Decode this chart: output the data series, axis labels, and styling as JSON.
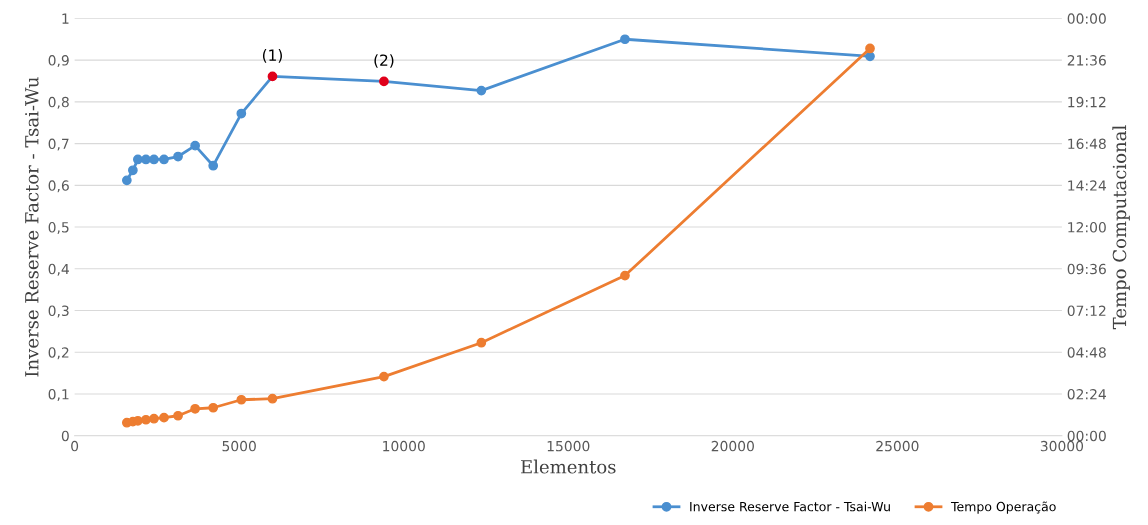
{
  "chart_data": {
    "type": "line",
    "xlabel": "Elementos",
    "ylabel": "Inverse Reserve Factor - Tsai-Wu",
    "y2label": "Tempo Computacional",
    "x": [
      1587,
      1770,
      1922,
      2167,
      2411,
      2716,
      3143,
      3662,
      4211,
      5066,
      6012,
      9399,
      12359,
      16723,
      24169
    ],
    "series": [
      {
        "name": "Inverse Reserve Factor - Tsai-Wu",
        "color": "#4a8fd0",
        "colors": [
          "#4a8fd0",
          "#4a8fd0",
          "#4a8fd0",
          "#4a8fd0",
          "#4a8fd0",
          "#4a8fd0",
          "#4a8fd0",
          "#4a8fd0",
          "#4a8fd0",
          "#4a8fd0",
          "#e0001b",
          "#e0001b",
          "#4a8fd0",
          "#4a8fd0",
          "#4a8fd0"
        ],
        "values": [
          0.612,
          0.636,
          0.662,
          0.662,
          0.662,
          0.662,
          0.669,
          0.695,
          0.647,
          0.772,
          0.861,
          0.849,
          0.827,
          0.95,
          0.909
        ]
      },
      {
        "name": "Tempo Operação",
        "color": "#ed7d31",
        "axis": "y2",
        "values": [
          0.75,
          0.81,
          0.86,
          0.92,
          0.98,
          1.04,
          1.15,
          1.55,
          1.61,
          2.07,
          2.13,
          3.4,
          5.35,
          9.21,
          22.27
        ]
      }
    ],
    "xlim": [
      0,
      30000
    ],
    "xticks": [
      0,
      5000,
      10000,
      15000,
      20000,
      25000,
      30000
    ],
    "ylim": [
      0,
      1
    ],
    "yticks": [
      0,
      {
        "value": 0.1,
        "label": "0,1"
      },
      {
        "value": 0.2,
        "label": "0,2"
      },
      {
        "value": 0.3,
        "label": "0,3"
      },
      {
        "value": 0.4,
        "label": "0,4"
      },
      {
        "value": 0.5,
        "label": "0,5"
      },
      {
        "value": 0.6,
        "label": "0,6"
      },
      {
        "value": 0.7,
        "label": "0,7"
      },
      {
        "value": 0.8,
        "label": "0,8"
      },
      {
        "value": 0.9,
        "label": "0,9"
      },
      1
    ],
    "y2lim": [
      0,
      24
    ],
    "y2ticks": [
      {
        "value": 0,
        "label": "00:00"
      },
      {
        "value": 2.4,
        "label": "02:24"
      },
      {
        "value": 4.8,
        "label": "04:48"
      },
      {
        "value": 7.2,
        "label": "07:12"
      },
      {
        "value": 9.6,
        "label": "09:36"
      },
      {
        "value": 12,
        "label": "12:00"
      },
      {
        "value": 14.4,
        "label": "14:24"
      },
      {
        "value": 16.8,
        "label": "16:48"
      },
      {
        "value": 19.2,
        "label": "19:12"
      },
      {
        "value": 21.6,
        "label": "21:36"
      },
      {
        "value": 24,
        "label": "00:00"
      }
    ],
    "annotations": [
      {
        "text": "(1)",
        "x": 6012,
        "y": 0.861
      },
      {
        "text": "(2)",
        "x": 9399,
        "y": 0.849
      }
    ],
    "grid": "y",
    "legend": "bottom right",
    "marker": "circle",
    "line_style": "solid"
  }
}
